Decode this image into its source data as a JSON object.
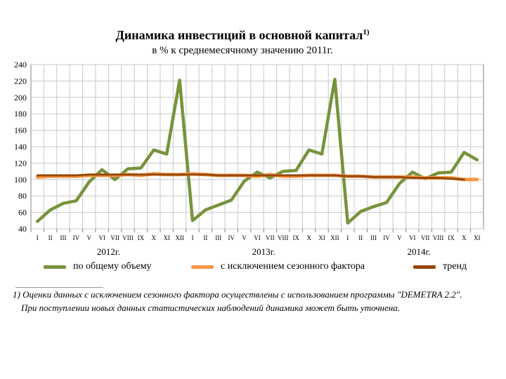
{
  "title": "Динамика инвестиций в основной капитал",
  "title_note": "1)",
  "subtitle": "в % к среднемесячному значению 2011г.",
  "footnote": {
    "line1": "1) Оценки  данных с исключением сезонного фактора осуществлены с использованием программы \"DEMETRA 2.2\".",
    "line2": "При поступлении новых данных статистических наблюдений динамика может быть уточнена."
  },
  "colors": {
    "total": "#77933c",
    "seasonal": "#f79646",
    "trend": "#984807",
    "grid": "#c8c8c8",
    "axis": "#808080"
  },
  "chart_data": {
    "type": "line",
    "x": [
      "I",
      "II",
      "III",
      "IV",
      "V",
      "VI",
      "VII",
      "VIII",
      "IX",
      "X",
      "XI",
      "XII",
      "I",
      "II",
      "III",
      "IV",
      "V",
      "VI",
      "VII",
      "VIII",
      "IX",
      "X",
      "XI",
      "XII",
      "I",
      "II",
      "III",
      "IV",
      "V",
      "VI",
      "VII",
      "VIII",
      "IX",
      "X",
      "XI"
    ],
    "year_labels": [
      {
        "label": "2012г.",
        "center_index": 5.5
      },
      {
        "label": "2013г.",
        "center_index": 17.5
      },
      {
        "label": "2014г.",
        "center_index": 29.5
      }
    ],
    "ylim": [
      40,
      240
    ],
    "yticks": [
      40,
      60,
      80,
      100,
      120,
      140,
      160,
      180,
      200,
      220,
      240
    ],
    "grid": true,
    "legend_position": "bottom",
    "series": [
      {
        "name": "по общему объему",
        "color": "#77933c",
        "values": [
          49,
          63,
          71,
          74,
          97,
          112,
          100,
          113,
          114,
          136,
          131,
          221,
          50,
          63,
          69,
          75,
          98,
          109,
          102,
          110,
          111,
          136,
          131,
          222,
          47,
          61,
          67,
          72,
          95,
          109,
          101,
          108,
          109,
          133,
          124
        ]
      },
      {
        "name": "с исключением  сезонного фактора",
        "color": "#f79646",
        "values": [
          103,
          104,
          104,
          104,
          105,
          105,
          105,
          106,
          105,
          107,
          106,
          106,
          107,
          106,
          105,
          105,
          105,
          104,
          106,
          104,
          104,
          105,
          105,
          105,
          104,
          104,
          103,
          103,
          103,
          103,
          102,
          102,
          102,
          100,
          100
        ]
      },
      {
        "name": "тренд",
        "color": "#984807",
        "values": [
          105,
          105,
          105,
          105,
          106,
          106,
          106,
          106,
          106,
          106,
          106,
          106,
          106,
          106,
          105,
          105,
          105,
          105,
          105,
          105,
          105,
          105,
          105,
          105,
          104,
          104,
          103,
          103,
          103,
          102,
          102,
          102,
          101,
          100,
          null
        ]
      }
    ]
  }
}
